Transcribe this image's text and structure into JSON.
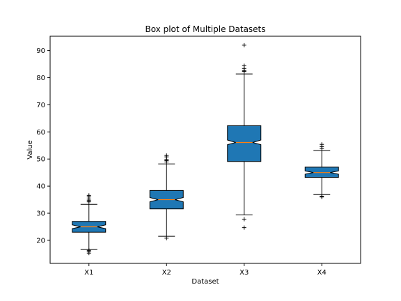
{
  "chart_data": {
    "type": "box",
    "title": "Box plot of Multiple Datasets",
    "xlabel": "Dataset",
    "ylabel": "Value",
    "ylim": [
      11.5,
      95.3
    ],
    "yticks": [
      20,
      30,
      40,
      50,
      60,
      70,
      80,
      90
    ],
    "grid": false,
    "notched": true,
    "box_color": "#1f77b4",
    "median_color": "#ff7f0e",
    "categories": [
      "X1",
      "X2",
      "X3",
      "X4"
    ],
    "boxes": [
      {
        "name": "X1",
        "q1": 23.0,
        "median": 25.0,
        "q3": 27.0,
        "notch_low": 24.3,
        "notch_high": 25.7,
        "whisker_low": 16.6,
        "whisker_high": 33.3,
        "outliers": [
          15.3,
          16.0,
          16.3,
          34.2,
          34.7,
          35.2,
          36.0,
          36.6
        ]
      },
      {
        "name": "X2",
        "q1": 31.6,
        "median": 35.0,
        "q3": 38.4,
        "notch_low": 34.2,
        "notch_high": 35.8,
        "whisker_low": 21.5,
        "whisker_high": 48.2,
        "outliers": [
          20.8,
          48.9,
          49.4,
          49.9,
          50.8,
          51.3
        ]
      },
      {
        "name": "X3",
        "q1": 49.1,
        "median": 56.1,
        "q3": 62.3,
        "notch_low": 55.3,
        "notch_high": 57.0,
        "whisker_low": 29.4,
        "whisker_high": 81.4,
        "outliers": [
          24.7,
          27.8,
          82.3,
          82.6,
          83.4,
          84.4,
          92.0
        ]
      },
      {
        "name": "X4",
        "q1": 43.2,
        "median": 45.0,
        "q3": 47.0,
        "notch_low": 44.4,
        "notch_high": 45.6,
        "whisker_low": 36.9,
        "whisker_high": 53.1,
        "outliers": [
          36.0,
          36.3,
          53.9,
          54.6,
          55.4
        ]
      }
    ]
  }
}
